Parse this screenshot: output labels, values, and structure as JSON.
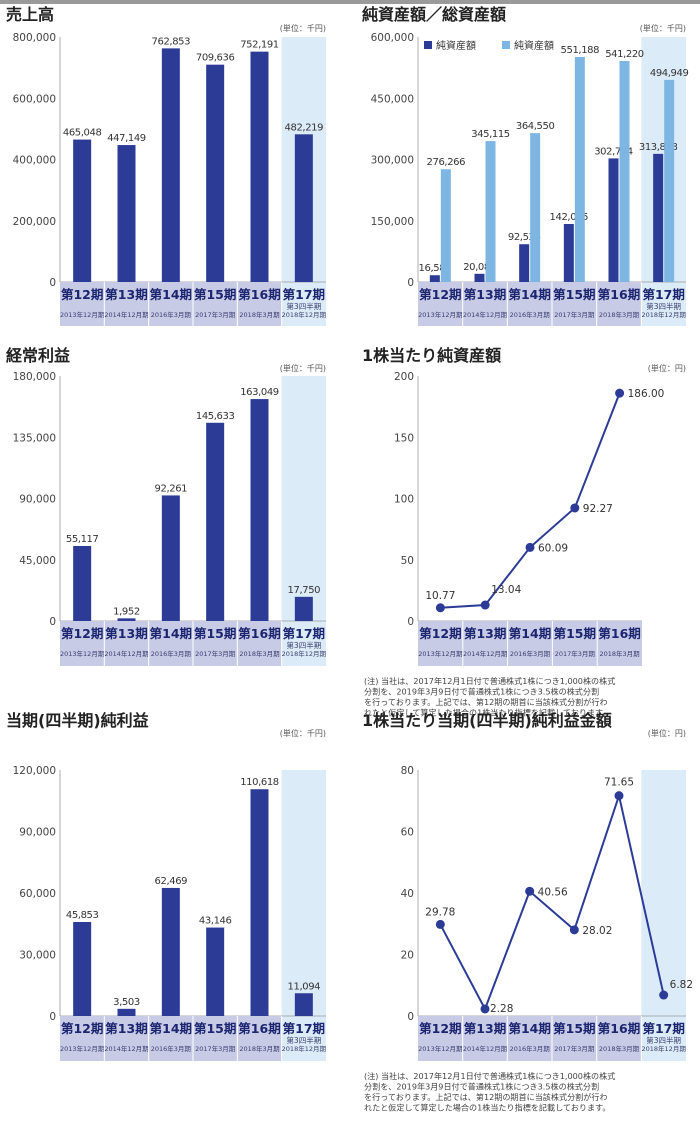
{
  "colors": {
    "navy": "#2b3b96",
    "light": "#7eb6e3",
    "highlight": "#dcebf8",
    "period_bg": "#c8cbe6",
    "line": "#2b3b96"
  },
  "chart_data": [
    {
      "id": "sales",
      "type": "bar",
      "title": "売上高",
      "unit": "(単位：千円)",
      "ylim": [
        0,
        800000
      ],
      "yticks": [
        "0",
        "200,000",
        "400,000",
        "600,000",
        "800,000"
      ],
      "categories": [
        "第12期",
        "第13期",
        "第14期",
        "第15期",
        "第16期",
        "第17期"
      ],
      "sublabels": [
        "2013年12月期",
        "2014年12月期",
        "2016年3月期",
        "2017年3月期",
        "2018年3月期",
        "第3四半期\n2018年12月期"
      ],
      "highlight_last": true,
      "series": [
        {
          "values": [
            465048,
            447149,
            762853,
            709636,
            752191,
            482219
          ],
          "labels": [
            "465,048",
            "447,149",
            "762,853",
            "709,636",
            "752,191",
            "482,219"
          ]
        }
      ]
    },
    {
      "id": "assets",
      "type": "bar",
      "title": "純資産額／総資産額",
      "unit": "(単位：千円)",
      "ylim": [
        0,
        600000
      ],
      "yticks": [
        "0",
        "150,000",
        "300,000",
        "450,000",
        "600,000"
      ],
      "categories": [
        "第12期",
        "第13期",
        "第14期",
        "第15期",
        "第16期",
        "第17期"
      ],
      "sublabels": [
        "2013年12月期",
        "2014年12月期",
        "2016年3月期",
        "2017年3月期",
        "2018年3月期",
        "第3四半期\n2018年12月期"
      ],
      "highlight_last": true,
      "legend": [
        "純資産額",
        "純資産額"
      ],
      "series": [
        {
          "values": [
            16582,
            20085,
            92536,
            142095,
            302714,
            313808
          ],
          "labels": [
            "16,582",
            "20,085",
            "92,536",
            "142,095",
            "302,714",
            "313,808"
          ]
        },
        {
          "values": [
            276266,
            345115,
            364550,
            551188,
            541220,
            494949
          ],
          "labels": [
            "276,266",
            "345,115",
            "364,550",
            "551,188",
            "541,220",
            "494,949"
          ]
        }
      ]
    },
    {
      "id": "ordinary",
      "type": "bar",
      "title": "経常利益",
      "unit": "(単位：千円)",
      "ylim": [
        0,
        180000
      ],
      "yticks": [
        "0",
        "45,000",
        "90,000",
        "135,000",
        "180,000"
      ],
      "categories": [
        "第12期",
        "第13期",
        "第14期",
        "第15期",
        "第16期",
        "第17期"
      ],
      "sublabels": [
        "2013年12月期",
        "2014年12月期",
        "2016年3月期",
        "2017年3月期",
        "2018年3月期",
        "第3四半期\n2018年12月期"
      ],
      "highlight_last": true,
      "series": [
        {
          "values": [
            55117,
            1952,
            92261,
            145633,
            163049,
            17750
          ],
          "labels": [
            "55,117",
            "1,952",
            "92,261",
            "145,633",
            "163,049",
            "17,750"
          ]
        }
      ]
    },
    {
      "id": "bps",
      "type": "line",
      "title": "1株当たり純資産額",
      "unit": "(単位：円)",
      "ylim": [
        0,
        200
      ],
      "yticks": [
        "0",
        "50",
        "100",
        "150",
        "200"
      ],
      "categories": [
        "第12期",
        "第13期",
        "第14期",
        "第15期",
        "第16期"
      ],
      "sublabels": [
        "2013年12月期",
        "2014年12月期",
        "2016年3月期",
        "2017年3月期",
        "2018年3月期"
      ],
      "highlight_last": false,
      "series": [
        {
          "values": [
            10.77,
            13.04,
            60.09,
            92.27,
            186.0
          ],
          "labels": [
            "10.77",
            "13.04",
            "60.09",
            "92.27",
            "186.00"
          ]
        }
      ]
    },
    {
      "id": "netincome",
      "type": "bar",
      "title": "当期(四半期)純利益",
      "unit": "(単位：千円)",
      "ylim": [
        0,
        120000
      ],
      "yticks": [
        "0",
        "30,000",
        "60,000",
        "90,000",
        "120,000"
      ],
      "categories": [
        "第12期",
        "第13期",
        "第14期",
        "第15期",
        "第16期",
        "第17期"
      ],
      "sublabels": [
        "2013年12月期",
        "2014年12月期",
        "2016年3月期",
        "2017年3月期",
        "2018年3月期",
        "第3四半期\n2018年12月期"
      ],
      "highlight_last": true,
      "series": [
        {
          "values": [
            45853,
            3503,
            62469,
            43146,
            110618,
            11094
          ],
          "labels": [
            "45,853",
            "3,503",
            "62,469",
            "43,146",
            "110,618",
            "11,094"
          ]
        }
      ]
    },
    {
      "id": "eps",
      "type": "line",
      "title": "1株当たり当期(四半期)純利益金額",
      "unit": "(単位：円)",
      "ylim": [
        0,
        80
      ],
      "yticks": [
        "0",
        "20",
        "40",
        "60",
        "80"
      ],
      "categories": [
        "第12期",
        "第13期",
        "第14期",
        "第15期",
        "第16期",
        "第17期"
      ],
      "sublabels": [
        "2013年12月期",
        "2014年12月期",
        "2016年3月期",
        "2017年3月期",
        "2018年3月期",
        "第3四半期\n2018年12月期"
      ],
      "highlight_last": true,
      "series": [
        {
          "values": [
            29.78,
            2.28,
            40.56,
            28.02,
            71.65,
            6.82
          ],
          "labels": [
            "29.78",
            "2.28",
            "40.56",
            "28.02",
            "71.65",
            "6.82"
          ]
        }
      ]
    }
  ],
  "notes": {
    "bps": [
      "(注) 当社は、2017年12月1日付で普通株式1株につき1,000株の株式",
      "分割を、2019年3月9日付で普通株式1株につき3.5株の株式分割",
      "を行っております。上記では、第12期の期首に当該株式分割が行わ",
      "れたと仮定して算定した場合の1株当たり指標を記載しております。"
    ],
    "eps": [
      "(注) 当社は、2017年12月1日付で普通株式1株につき1,000株の株式",
      "分割を、2019年3月9日付で普通株式1株につき3.5株の株式分割",
      "を行っております。上記では、第12期の期首に当該株式分割が行わ",
      "れたと仮定して算定した場合の1株当たり指標を記載しております。"
    ]
  }
}
